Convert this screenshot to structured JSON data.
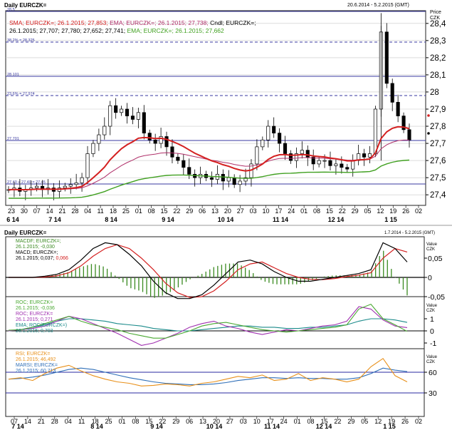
{
  "top": {
    "title": "Daily EURCZK=",
    "range": "20.6.2014 - 5.2.2015 (GMT)",
    "axis_unit": "Price\nCZK",
    "legend_line1": "Cndl; EURCZK=;",
    "legend_sma": "SMA; EURCZK=; 26.1.2015; 27,853;",
    "legend_ema_red": "EMA; EURCZK=; 26.1.2015; 27,738;",
    "legend_line2": "26.1.2015; 27,707; 27,780; 27,652; 27,741;",
    "legend_ema_green": "EMA; EURCZK=; 26.1.2015; 27,662",
    "fib_labels": [
      "28.5",
      "38.2% = 28.325",
      "28.101",
      "23.6% = 27.974",
      "27.701",
      "27.40 + 27.40 = 27.45"
    ],
    "y_ticks": [
      "28,4",
      "28,3",
      "28,2",
      "28,1",
      "28",
      "27,9",
      "27,8",
      "27,7",
      "27,6",
      "27,5",
      "27,4"
    ]
  },
  "bottom": {
    "title": "Daily EURCZK=",
    "range": "1.7.2014 - 5.2.2015 (GMT)",
    "macd": {
      "legend": [
        "MACDF; EURCZK=;",
        "26.1.2015; -0,030",
        "MACD; EURCZK=;",
        "26.1.2015; 0,037; 0,066"
      ],
      "unit": "Value\nCZK",
      "y_ticks": [
        "0,05",
        "0",
        "-0,05"
      ]
    },
    "roc": {
      "legend": [
        "ROC; EURCZK=",
        "26.1.2015; -0,036",
        "ROC; EURCZK=",
        "26.1.2015; 0,271",
        "EMA; ROC(EURCZK=)",
        "26.1.2015; 0,703"
      ],
      "unit": "Value\nCZK",
      "y_ticks": [
        "1",
        "0",
        "-1"
      ]
    },
    "rsi": {
      "legend": [
        "RSI; EURCZK=",
        "26.1.2015; 46,492",
        "MARSI; EURCZK=",
        "26.1.2015; 60,713"
      ],
      "unit": "Value\nCZK",
      "y_ticks": [
        "60",
        "30"
      ]
    }
  },
  "colors": {
    "sma": "#b0306a",
    "ema_red": "#d42020",
    "ema_green": "#40a020",
    "candle": "#000000",
    "fib": "#3a3aa0",
    "roc_green": "#4aa832",
    "roc_purple": "#a030b0",
    "roc_teal": "#1a8a8a",
    "rsi": "#e8901a",
    "marsi": "#2f6fb8",
    "macd_hist": "#3a8a20"
  },
  "chart_data": [
    {
      "type": "candlestick",
      "title": "Daily EURCZK=",
      "y_unit": "CZK",
      "ylim": [
        27.33,
        28.47
      ],
      "x_tick_labels": [
        "23",
        "30",
        "07",
        "14",
        "21",
        "28",
        "04",
        "11",
        "18",
        "25",
        "01",
        "08",
        "15",
        "22",
        "29",
        "06",
        "13",
        "20",
        "27",
        "03",
        "10",
        "17",
        "24",
        "01",
        "08",
        "15",
        "22",
        "29",
        "05",
        "12",
        "19",
        "26",
        "02"
      ],
      "x_month_labels": [
        "6 14",
        "7 14",
        "8 14",
        "9 14",
        "10 14",
        "11 14",
        "12 14",
        "1 15"
      ],
      "fibonacci_levels": [
        28.5,
        28.325,
        28.101,
        27.974,
        27.701,
        27.4
      ],
      "close_approx": [
        27.43,
        27.44,
        27.42,
        27.43,
        27.44,
        27.45,
        27.43,
        27.44,
        27.42,
        27.44,
        27.45,
        27.46,
        27.47,
        27.5,
        27.64,
        27.7,
        27.75,
        27.8,
        27.92,
        27.88,
        27.9,
        27.86,
        27.84,
        27.88,
        27.76,
        27.72,
        27.7,
        27.74,
        27.68,
        27.62,
        27.6,
        27.56,
        27.52,
        27.5,
        27.52,
        27.5,
        27.49,
        27.52,
        27.48,
        27.5,
        27.46,
        27.48,
        27.5,
        27.58,
        27.68,
        27.72,
        27.8,
        27.76,
        27.7,
        27.64,
        27.6,
        27.64,
        27.66,
        27.62,
        27.58,
        27.6,
        27.6,
        27.57,
        27.58,
        27.56,
        27.55,
        27.6,
        27.64,
        27.62,
        27.64,
        27.9,
        28.35,
        28.05,
        27.94,
        27.86,
        27.78,
        27.72
      ],
      "series": [
        {
          "name": "SMA",
          "last_value": 27.853
        },
        {
          "name": "EMA",
          "last_value": 27.738
        },
        {
          "name": "EMA",
          "last_value": 27.662
        }
      ]
    },
    {
      "type": "line",
      "title": "MACD",
      "ylim": [
        -0.075,
        0.12
      ],
      "y_ticks": [
        0.05,
        0,
        -0.05
      ],
      "series": [
        {
          "name": "MACD",
          "values": [
            0,
            0,
            0,
            0.003,
            0.008,
            0.02,
            0.045,
            0.075,
            0.09,
            0.085,
            0.06,
            0.03,
            -0.01,
            -0.04,
            -0.055,
            -0.055,
            -0.045,
            -0.02,
            0.01,
            0.04,
            0.045,
            0.035,
            0.015,
            0,
            -0.01,
            -0.01,
            -0.005,
            0,
            0.005,
            0.01,
            0.02,
            0.09,
            0.075,
            0.04
          ]
        },
        {
          "name": "MACDF",
          "values": [
            0,
            0,
            0,
            0.001,
            0.004,
            0.012,
            0.03,
            0.055,
            0.075,
            0.085,
            0.075,
            0.05,
            0.02,
            -0.015,
            -0.04,
            -0.052,
            -0.05,
            -0.035,
            -0.01,
            0.02,
            0.035,
            0.04,
            0.025,
            0.01,
            0,
            -0.005,
            -0.006,
            -0.003,
            0.002,
            0.006,
            0.012,
            0.05,
            0.075,
            0.066
          ]
        }
      ]
    },
    {
      "type": "line",
      "title": "ROC",
      "ylim": [
        -1.8,
        2.6
      ],
      "y_ticks": [
        1,
        0,
        -1
      ],
      "series": [
        {
          "name": "ROC",
          "values": [
            0.05,
            0.1,
            0.3,
            0.6,
            0.9,
            1.2,
            0.8,
            0.5,
            0.3,
            0.1,
            -0.2,
            -0.4,
            -0.6,
            -0.6,
            -0.3,
            0,
            0.4,
            0.6,
            0.7,
            0.5,
            0.3,
            0.1,
            0,
            -0.1,
            0,
            0.1,
            0.2,
            0.3,
            0.5,
            1.8,
            2.2,
            1.0,
            0.5,
            -0.04
          ]
        },
        {
          "name": "ROC",
          "values": [
            0,
            0.1,
            0.2,
            0.4,
            0.8,
            1.2,
            1.0,
            0.6,
            0.2,
            -0.2,
            -0.7,
            -1.2,
            -1.0,
            -0.6,
            -0.2,
            0.3,
            0.6,
            0.8,
            0.4,
            0.2,
            -0.1,
            -0.3,
            -0.1,
            0.1,
            0,
            0.2,
            0.4,
            0.5,
            0.8,
            2.0,
            1.8,
            0.9,
            0.4,
            0.27
          ]
        },
        {
          "name": "EMA",
          "values": [
            0,
            0.1,
            0.3,
            0.5,
            0.8,
            1.0,
            1.0,
            0.9,
            0.8,
            0.6,
            0.5,
            0.4,
            0.2,
            0.1,
            0,
            0,
            0.1,
            0.2,
            0.3,
            0.4,
            0.4,
            0.3,
            0.3,
            0.2,
            0.2,
            0.3,
            0.3,
            0.4,
            0.5,
            0.8,
            1.0,
            1.0,
            0.9,
            0.7
          ]
        }
      ]
    },
    {
      "type": "line",
      "title": "RSI",
      "ylim": [
        0,
        100
      ],
      "y_ticks": [
        60,
        30
      ],
      "series": [
        {
          "name": "RSI",
          "values": [
            50,
            52,
            48,
            58,
            66,
            70,
            62,
            55,
            50,
            46,
            44,
            40,
            41,
            43,
            42,
            40,
            44,
            46,
            50,
            54,
            52,
            56,
            48,
            50,
            58,
            48,
            52,
            50,
            46,
            50,
            68,
            80,
            55,
            46
          ]
        },
        {
          "name": "MARSI",
          "values": [
            50,
            51,
            53,
            56,
            60,
            64,
            66,
            64,
            60,
            56,
            52,
            49,
            46,
            44,
            43,
            42,
            42,
            43,
            45,
            48,
            50,
            52,
            52,
            51,
            52,
            51,
            51,
            50,
            50,
            52,
            58,
            66,
            63,
            61
          ]
        }
      ]
    }
  ]
}
